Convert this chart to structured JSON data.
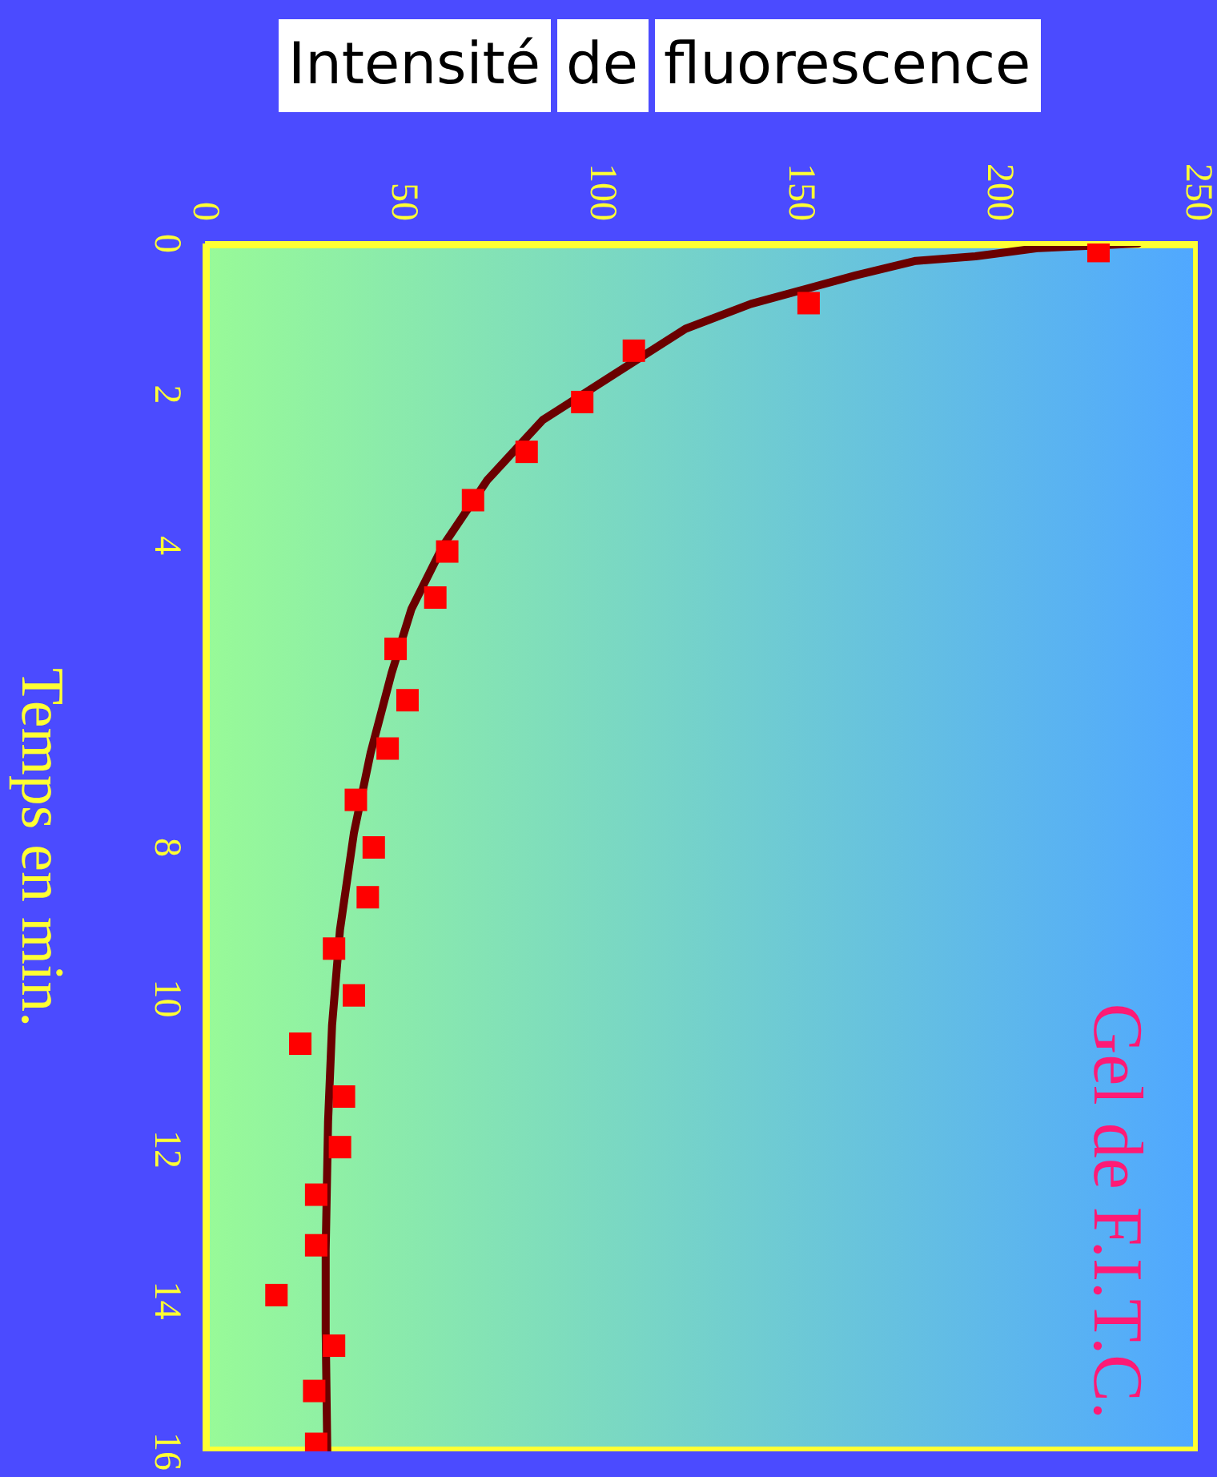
{
  "chart_data": {
    "type": "line",
    "xlabel": "Intensité de fluorescence",
    "ylabel": "Temps en min.",
    "annotations": [
      "Gel de F.I.T.C."
    ],
    "xlim": [
      0,
      250
    ],
    "xticks": [
      0,
      50,
      100,
      150,
      200,
      250
    ],
    "ylim": [
      16,
      0
    ],
    "yticks": [
      0,
      2,
      4,
      8,
      10,
      12,
      14,
      16
    ],
    "series": [
      {
        "color": "#6b0000",
        "x": [
          235,
          210,
          194,
          179,
          164,
          137.5,
          121,
          104,
          85,
          71,
          60,
          52,
          47,
          41.7,
          37.5,
          34,
          32,
          31,
          30.4,
          30.4,
          30.8
        ],
        "values": [
          0,
          0.06,
          0.17,
          0.23,
          0.42,
          0.8,
          1.13,
          1.7,
          2.34,
          3.14,
          4,
          4.84,
          5.69,
          6.75,
          7.81,
          9.09,
          10.36,
          11.63,
          13.33,
          14.4,
          16
        ]
      },
      {
        "type": "scatter",
        "color": "#ff0000",
        "marker": "square",
        "x": [
          225,
          152,
          108,
          95,
          81,
          67.5,
          61,
          58,
          48,
          51,
          46,
          38,
          42.5,
          41,
          32.5,
          37.5,
          24,
          35,
          34,
          28,
          28,
          18,
          32.5,
          27.5,
          28
        ],
        "values": [
          0.1,
          0.79,
          1.42,
          2.1,
          2.76,
          3.4,
          4.08,
          4.69,
          5.37,
          6.05,
          6.69,
          7.37,
          8.0,
          8.66,
          9.34,
          9.96,
          10.6,
          11.3,
          11.97,
          12.6,
          13.27,
          13.93,
          14.6,
          15.2,
          15.9
        ]
      }
    ]
  }
}
